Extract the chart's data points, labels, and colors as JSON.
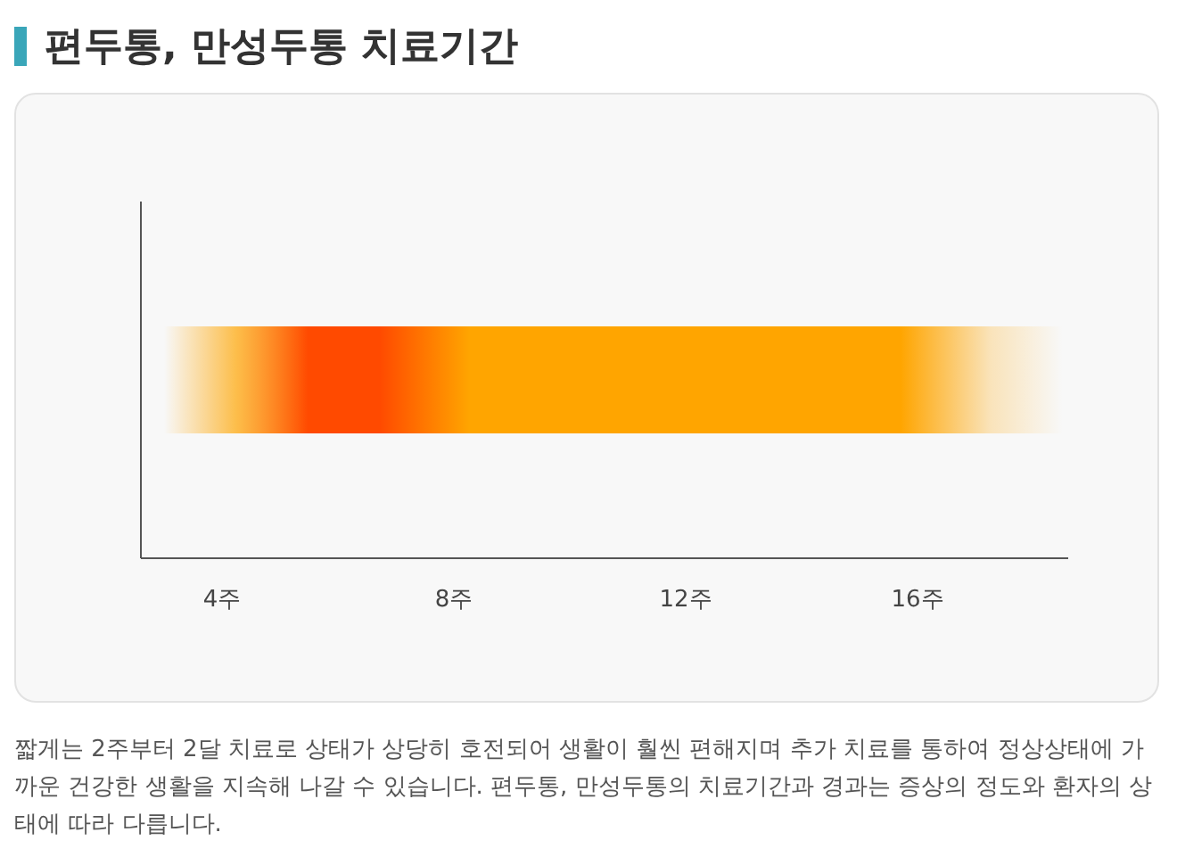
{
  "chart_data": {
    "type": "bar",
    "orientation": "horizontal",
    "title": "편두통, 만성두통 치료기간",
    "categories": [
      null
    ],
    "base": [
      3
    ],
    "values": [
      15.5
    ],
    "color": "#ffa500",
    "xlim": [
      2.6,
      18.6
    ],
    "xticks": [
      {
        "value": 4,
        "label": "4주"
      },
      {
        "value": 8,
        "label": "8주"
      },
      {
        "value": 12,
        "label": "12주"
      },
      {
        "value": 16,
        "label": "16주"
      }
    ],
    "grid": false,
    "legend": false,
    "annotations": [
      "짧게는 2주부터 2달 치료로 상태가 상당히 호전되어 생활이 훨씬 편해지며 추가 치료를 통하여 정상상태에 가까운 건강한 생활을 지속해 나갈 수 있습니다. 편두통, 만성두통의 치료기간과 경과는 증상의 정도와 환자의 상태에 따라 다릅니다."
    ]
  }
}
